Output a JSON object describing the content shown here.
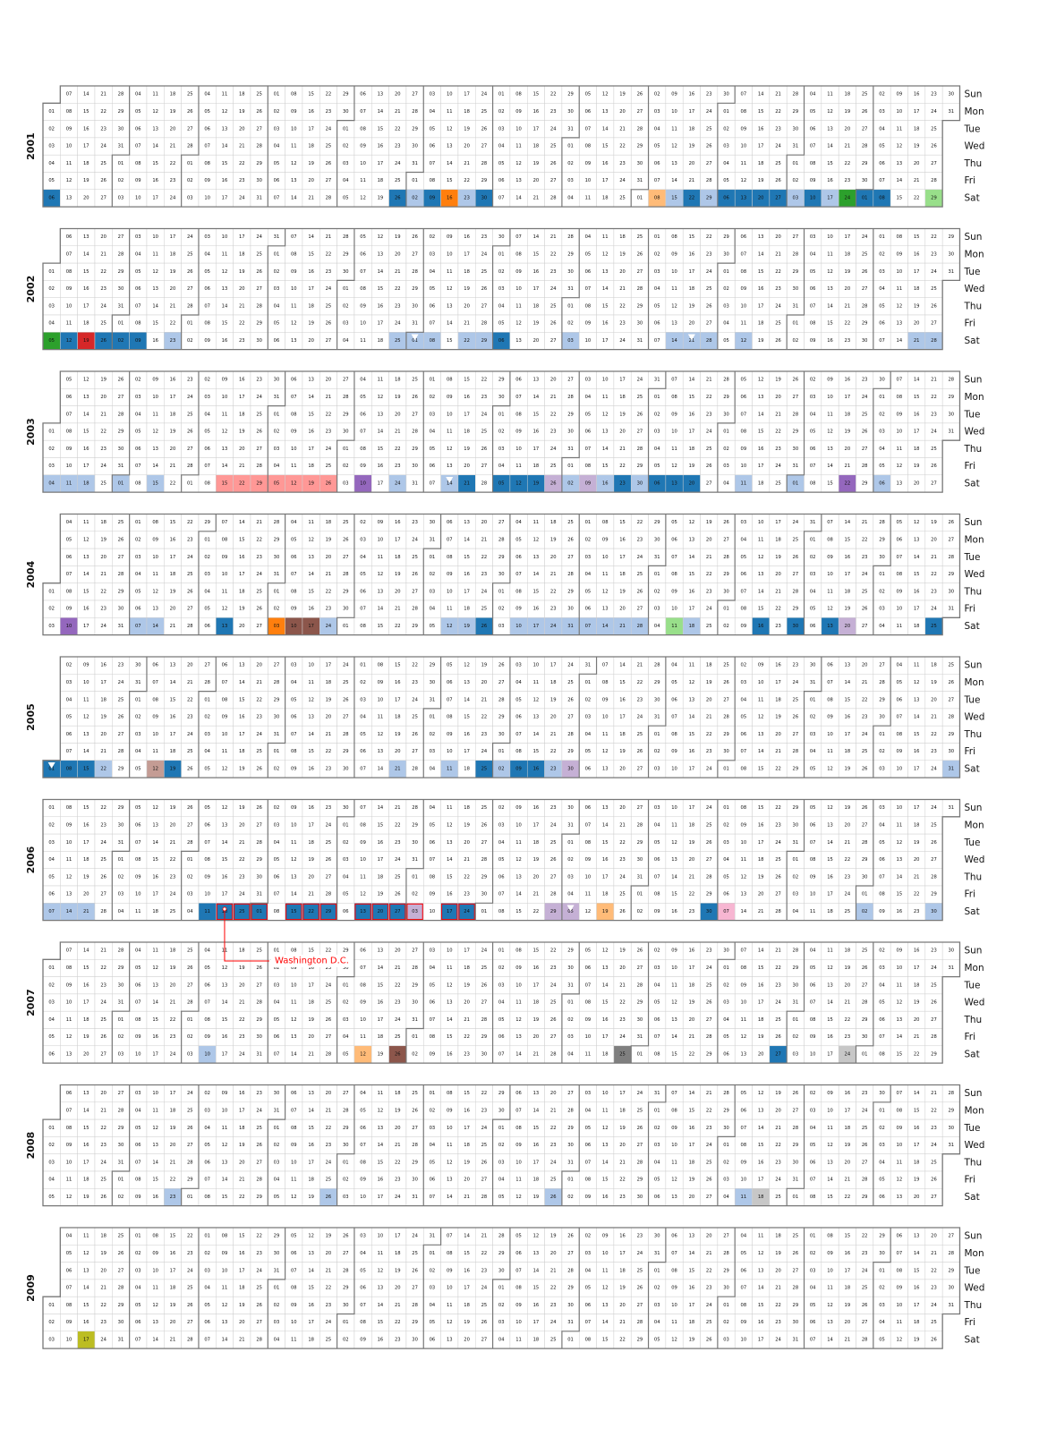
{
  "chart_data": {
    "type": "heatmap",
    "title": "",
    "day_labels": [
      "Sun",
      "Mon",
      "Tue",
      "Wed",
      "Thu",
      "Fri",
      "Sat"
    ],
    "years": [
      2001,
      2002,
      2003,
      2004,
      2005,
      2006,
      2007,
      2008,
      2009
    ],
    "legend": "none",
    "palette": {
      "blue": "#1f77b4",
      "light_blue": "#aec7e8",
      "orange": "#ff7f0e",
      "light_orange": "#ffbb78",
      "green": "#2ca02c",
      "light_green": "#98df8a",
      "red": "#d62728",
      "pink": "#ff9896",
      "purple": "#9467bd",
      "lavender": "#c5b0d5",
      "brown": "#8c564b",
      "rose": "#c49c94",
      "magenta_light": "#f7b6d2",
      "gray": "#7f7f7f",
      "light_gray": "#c7c7c7",
      "olive": "#bcbd22"
    },
    "highlighted_days": [
      {
        "date": "2001-01-06",
        "color": "blue"
      },
      {
        "date": "2001-05-26",
        "color": "blue"
      },
      {
        "date": "2001-06-02",
        "color": "light_blue"
      },
      {
        "date": "2001-06-09",
        "color": "blue"
      },
      {
        "date": "2001-06-16",
        "color": "orange"
      },
      {
        "date": "2001-06-23",
        "color": "light_blue"
      },
      {
        "date": "2001-06-30",
        "color": "blue"
      },
      {
        "date": "2001-09-08",
        "color": "light_orange"
      },
      {
        "date": "2001-09-15",
        "color": "light_blue"
      },
      {
        "date": "2001-09-22",
        "color": "blue"
      },
      {
        "date": "2001-09-29",
        "color": "light_blue"
      },
      {
        "date": "2001-10-06",
        "color": "blue"
      },
      {
        "date": "2001-10-13",
        "color": "blue"
      },
      {
        "date": "2001-10-20",
        "color": "blue"
      },
      {
        "date": "2001-10-27",
        "color": "blue"
      },
      {
        "date": "2001-11-03",
        "color": "light_blue"
      },
      {
        "date": "2001-11-10",
        "color": "blue"
      },
      {
        "date": "2001-11-17",
        "color": "light_blue"
      },
      {
        "date": "2001-11-24",
        "color": "green"
      },
      {
        "date": "2001-12-01",
        "color": "blue"
      },
      {
        "date": "2001-12-08",
        "color": "blue"
      },
      {
        "date": "2001-12-29",
        "color": "light_green"
      },
      {
        "date": "2002-01-05",
        "color": "green"
      },
      {
        "date": "2002-01-12",
        "color": "blue"
      },
      {
        "date": "2002-01-19",
        "color": "red"
      },
      {
        "date": "2002-01-26",
        "color": "blue"
      },
      {
        "date": "2002-02-02",
        "color": "blue"
      },
      {
        "date": "2002-02-09",
        "color": "blue"
      },
      {
        "date": "2002-02-23",
        "color": "light_blue"
      },
      {
        "date": "2002-05-25",
        "color": "light_blue"
      },
      {
        "date": "2002-06-01",
        "color": "light_blue",
        "marker": "triangle"
      },
      {
        "date": "2002-06-08",
        "color": "light_blue"
      },
      {
        "date": "2002-06-22",
        "color": "light_blue"
      },
      {
        "date": "2002-06-29",
        "color": "light_blue"
      },
      {
        "date": "2002-07-06",
        "color": "blue"
      },
      {
        "date": "2002-08-03",
        "color": "light_blue"
      },
      {
        "date": "2002-09-14",
        "color": "light_blue"
      },
      {
        "date": "2002-09-21",
        "color": "light_blue",
        "marker": "triangle"
      },
      {
        "date": "2002-09-28",
        "color": "light_blue"
      },
      {
        "date": "2002-10-12",
        "color": "light_blue"
      },
      {
        "date": "2002-12-21",
        "color": "light_blue"
      },
      {
        "date": "2002-12-28",
        "color": "light_blue"
      },
      {
        "date": "2003-01-04",
        "color": "light_blue"
      },
      {
        "date": "2003-01-11",
        "color": "light_blue"
      },
      {
        "date": "2003-01-18",
        "color": "light_blue"
      },
      {
        "date": "2003-02-01",
        "color": "light_blue"
      },
      {
        "date": "2003-02-15",
        "color": "light_blue"
      },
      {
        "date": "2003-03-15",
        "color": "pink"
      },
      {
        "date": "2003-03-22",
        "color": "pink"
      },
      {
        "date": "2003-03-29",
        "color": "pink"
      },
      {
        "date": "2003-04-05",
        "color": "pink"
      },
      {
        "date": "2003-04-12",
        "color": "pink"
      },
      {
        "date": "2003-04-19",
        "color": "pink"
      },
      {
        "date": "2003-04-26",
        "color": "pink"
      },
      {
        "date": "2003-05-10",
        "color": "purple"
      },
      {
        "date": "2003-05-24",
        "color": "light_blue"
      },
      {
        "date": "2003-06-14",
        "color": "light_blue",
        "marker": "triangle"
      },
      {
        "date": "2003-06-21",
        "color": "blue"
      },
      {
        "date": "2003-07-05",
        "color": "blue"
      },
      {
        "date": "2003-07-12",
        "color": "blue"
      },
      {
        "date": "2003-07-19",
        "color": "blue"
      },
      {
        "date": "2003-07-26",
        "color": "lavender"
      },
      {
        "date": "2003-08-02",
        "color": "light_blue"
      },
      {
        "date": "2003-08-09",
        "color": "lavender"
      },
      {
        "date": "2003-08-16",
        "color": "light_blue"
      },
      {
        "date": "2003-08-23",
        "color": "blue"
      },
      {
        "date": "2003-08-30",
        "color": "light_blue"
      },
      {
        "date": "2003-09-06",
        "color": "blue"
      },
      {
        "date": "2003-09-13",
        "color": "blue"
      },
      {
        "date": "2003-09-20",
        "color": "blue"
      },
      {
        "date": "2003-10-11",
        "color": "light_blue"
      },
      {
        "date": "2003-11-01",
        "color": "light_blue"
      },
      {
        "date": "2003-11-22",
        "color": "purple"
      },
      {
        "date": "2003-12-06",
        "color": "light_blue"
      },
      {
        "date": "2004-01-10",
        "color": "purple"
      },
      {
        "date": "2004-02-07",
        "color": "light_blue"
      },
      {
        "date": "2004-02-14",
        "color": "light_blue"
      },
      {
        "date": "2004-03-13",
        "color": "blue"
      },
      {
        "date": "2004-04-03",
        "color": "orange"
      },
      {
        "date": "2004-04-10",
        "color": "brown"
      },
      {
        "date": "2004-04-17",
        "color": "brown"
      },
      {
        "date": "2004-04-24",
        "color": "light_blue"
      },
      {
        "date": "2004-06-12",
        "color": "light_blue"
      },
      {
        "date": "2004-06-19",
        "color": "light_blue"
      },
      {
        "date": "2004-06-26",
        "color": "blue"
      },
      {
        "date": "2004-07-10",
        "color": "light_blue"
      },
      {
        "date": "2004-07-17",
        "color": "light_blue"
      },
      {
        "date": "2004-07-24",
        "color": "light_blue"
      },
      {
        "date": "2004-07-31",
        "color": "light_blue"
      },
      {
        "date": "2004-08-07",
        "color": "light_blue"
      },
      {
        "date": "2004-08-14",
        "color": "light_blue"
      },
      {
        "date": "2004-08-21",
        "color": "light_blue"
      },
      {
        "date": "2004-08-28",
        "color": "light_blue"
      },
      {
        "date": "2004-09-11",
        "color": "light_green"
      },
      {
        "date": "2004-09-18",
        "color": "light_blue"
      },
      {
        "date": "2004-10-16",
        "color": "blue"
      },
      {
        "date": "2004-10-30",
        "color": "blue"
      },
      {
        "date": "2004-11-13",
        "color": "blue"
      },
      {
        "date": "2004-11-20",
        "color": "lavender"
      },
      {
        "date": "2004-12-25",
        "color": "blue"
      },
      {
        "date": "2005-01-01",
        "color": "blue",
        "marker": "triangle"
      },
      {
        "date": "2005-01-08",
        "color": "blue"
      },
      {
        "date": "2005-01-15",
        "color": "blue"
      },
      {
        "date": "2005-01-22",
        "color": "light_blue"
      },
      {
        "date": "2005-02-12",
        "color": "rose"
      },
      {
        "date": "2005-02-19",
        "color": "blue"
      },
      {
        "date": "2005-05-21",
        "color": "light_blue"
      },
      {
        "date": "2005-06-11",
        "color": "light_blue"
      },
      {
        "date": "2005-06-25",
        "color": "blue"
      },
      {
        "date": "2005-07-02",
        "color": "light_blue"
      },
      {
        "date": "2005-07-09",
        "color": "blue"
      },
      {
        "date": "2005-07-16",
        "color": "blue"
      },
      {
        "date": "2005-07-23",
        "color": "light_blue"
      },
      {
        "date": "2005-07-30",
        "color": "lavender"
      },
      {
        "date": "2005-12-31",
        "color": "light_blue"
      },
      {
        "date": "2006-01-07",
        "color": "light_blue"
      },
      {
        "date": "2006-01-14",
        "color": "light_blue"
      },
      {
        "date": "2006-01-21",
        "color": "light_blue"
      },
      {
        "date": "2006-03-11",
        "color": "blue"
      },
      {
        "date": "2006-03-18",
        "color": "blue",
        "marker": "dot"
      },
      {
        "date": "2006-03-25",
        "color": "blue"
      },
      {
        "date": "2006-04-01",
        "color": "blue"
      },
      {
        "date": "2006-04-15",
        "color": "blue"
      },
      {
        "date": "2006-04-22",
        "color": "blue"
      },
      {
        "date": "2006-04-29",
        "color": "blue"
      },
      {
        "date": "2006-05-13",
        "color": "blue"
      },
      {
        "date": "2006-05-20",
        "color": "blue"
      },
      {
        "date": "2006-05-27",
        "color": "blue"
      },
      {
        "date": "2006-06-03",
        "color": "lavender"
      },
      {
        "date": "2006-06-17",
        "color": "blue"
      },
      {
        "date": "2006-06-24",
        "color": "blue"
      },
      {
        "date": "2006-07-29",
        "color": "lavender"
      },
      {
        "date": "2006-08-05",
        "color": "lavender",
        "marker": "triangle"
      },
      {
        "date": "2006-08-19",
        "color": "light_orange"
      },
      {
        "date": "2006-09-30",
        "color": "blue"
      },
      {
        "date": "2006-10-07",
        "color": "magenta_light"
      },
      {
        "date": "2006-12-02",
        "color": "light_blue"
      },
      {
        "date": "2006-12-30",
        "color": "light_blue"
      },
      {
        "date": "2007-03-10",
        "color": "light_blue"
      },
      {
        "date": "2007-05-12",
        "color": "light_orange"
      },
      {
        "date": "2007-05-26",
        "color": "brown"
      },
      {
        "date": "2007-08-25",
        "color": "gray"
      },
      {
        "date": "2007-10-27",
        "color": "blue"
      },
      {
        "date": "2007-11-24",
        "color": "light_gray"
      },
      {
        "date": "2008-02-23",
        "color": "light_blue"
      },
      {
        "date": "2008-04-26",
        "color": "light_blue"
      },
      {
        "date": "2008-07-26",
        "color": "light_blue"
      },
      {
        "date": "2008-10-11",
        "color": "light_blue"
      },
      {
        "date": "2008-10-18",
        "color": "light_gray"
      },
      {
        "date": "2009-01-17",
        "color": "olive"
      }
    ],
    "outlined_days": [
      "2006-03-18",
      "2006-03-25",
      "2006-04-01",
      "2006-04-15",
      "2006-04-22",
      "2006-04-29",
      "2006-05-13",
      "2006-05-20",
      "2006-05-27",
      "2006-06-03",
      "2006-06-17",
      "2006-06-24"
    ],
    "annotations": [
      {
        "text": "Washington D.C.",
        "date": "2006-03-18",
        "color": "#ff0000"
      }
    ]
  }
}
